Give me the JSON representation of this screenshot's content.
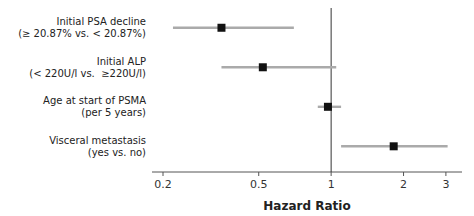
{
  "chart_data": {
    "type": "forest",
    "categories": [
      "Initial PSA decline\n(≥ 20.87% vs. < 20.87%)",
      "Initial ALP\n(< 220U/l vs.  ≥220U/l)",
      "Age at start of PSMA\n(per 5 years)",
      "Visceral metastasis\n(yes vs. no)"
    ],
    "values": [
      0.35,
      0.52,
      0.97,
      1.82
    ],
    "ci_low": [
      0.22,
      0.35,
      0.88,
      1.1
    ],
    "ci_high": [
      0.7,
      1.05,
      1.1,
      3.05
    ],
    "reference_line": 1.0,
    "color": "#111111",
    "x_label": "Hazard Ratio",
    "log": "x",
    "xlim": [
      0.18,
      3.5
    ],
    "xticks": [
      0.2,
      0.5,
      1,
      2,
      3
    ],
    "grid": false
  }
}
